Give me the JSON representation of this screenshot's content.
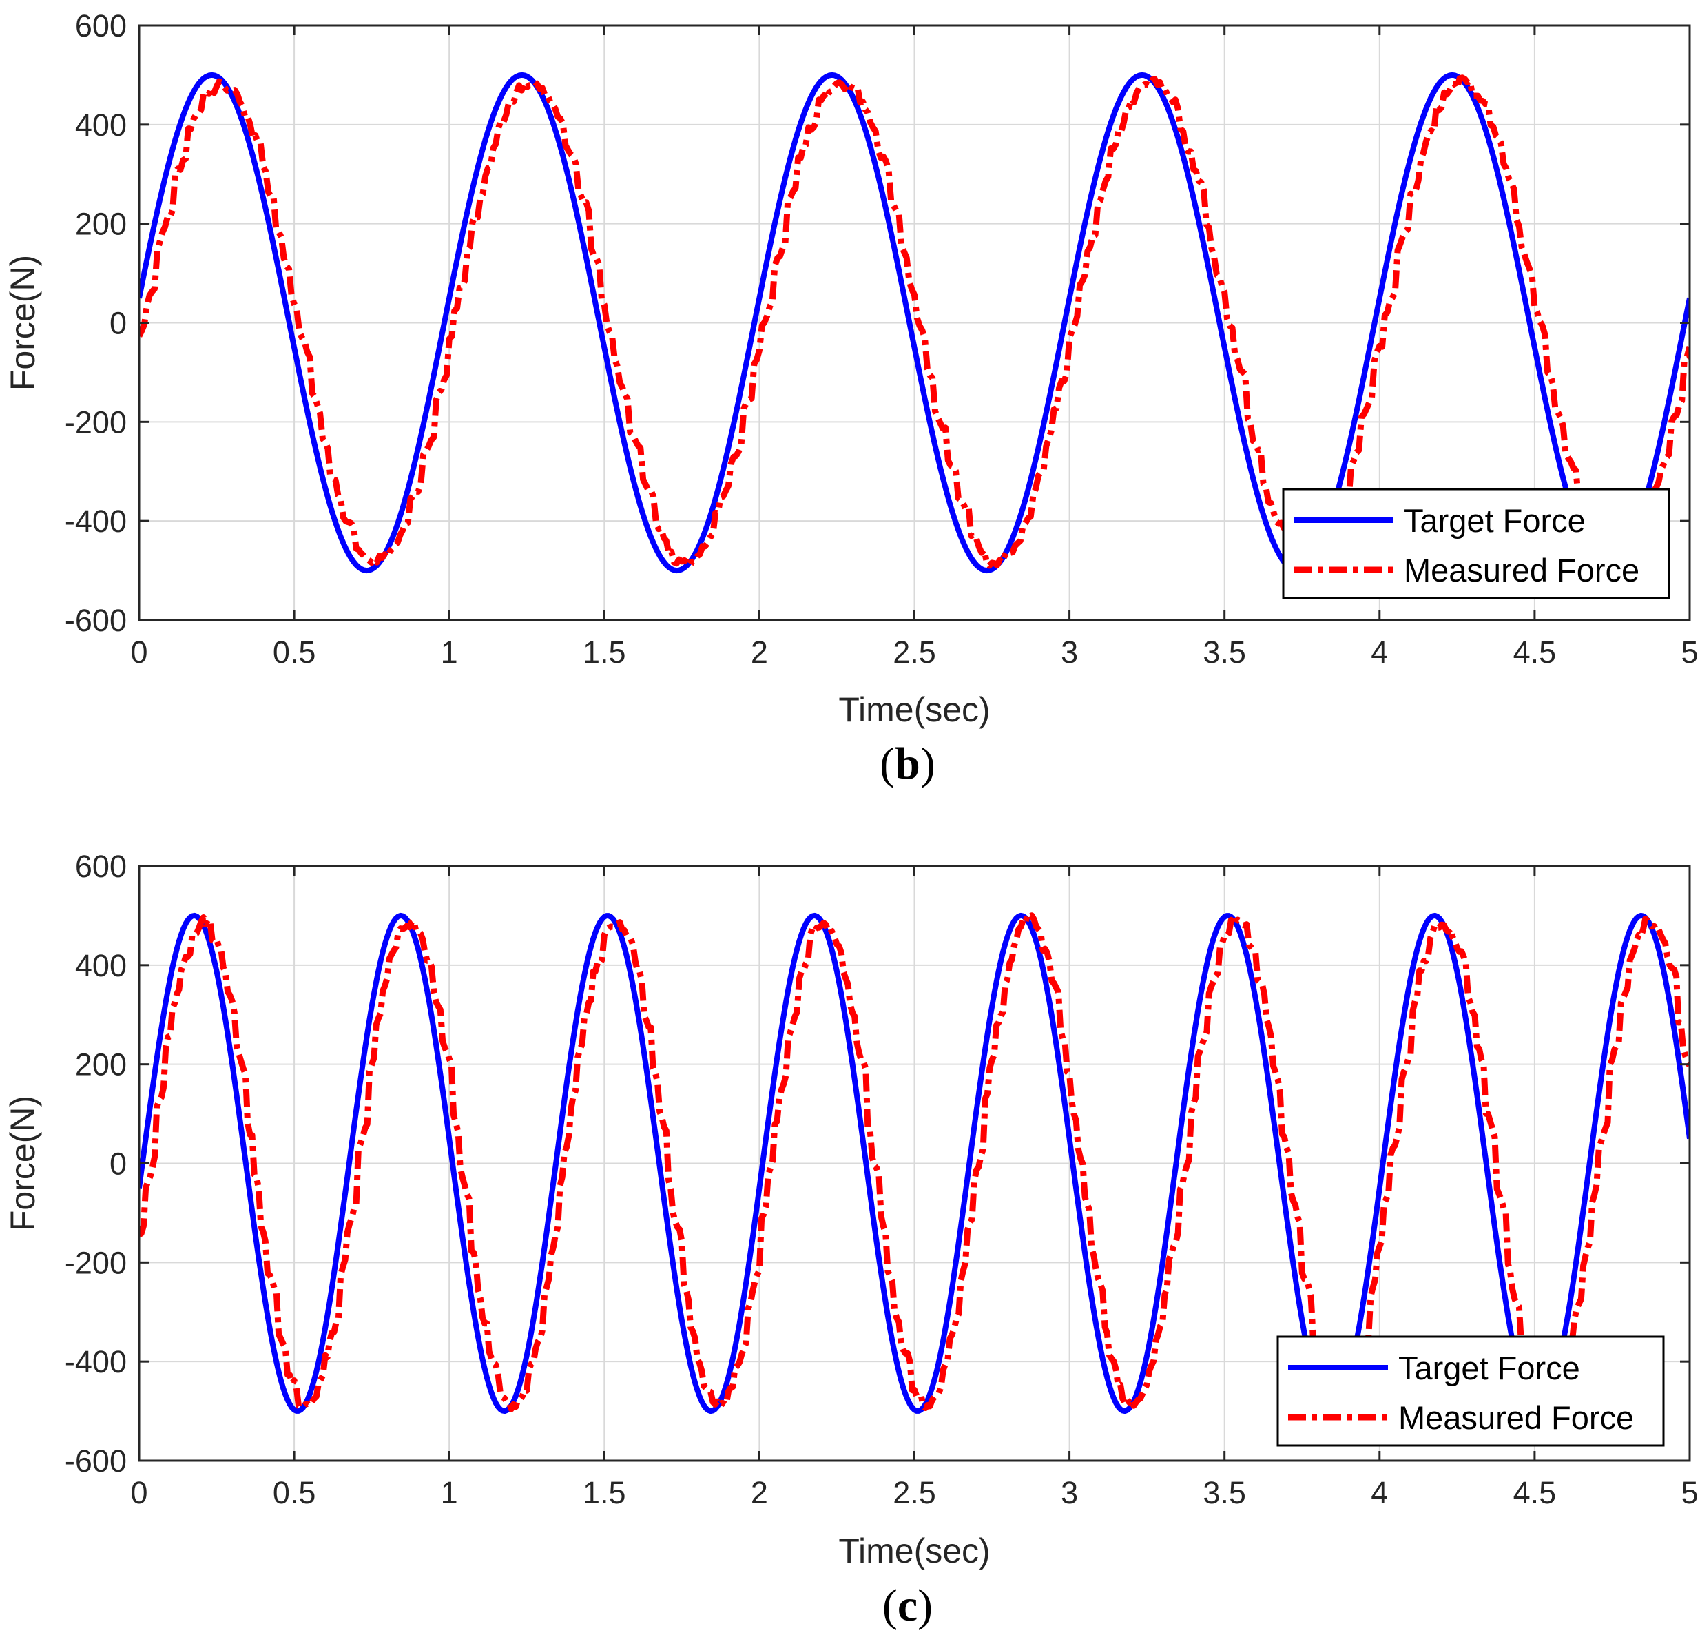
{
  "colors": {
    "target": "#0000ff",
    "measured": "#ff0000",
    "grid": "#d9d9d9",
    "axis": "#262626",
    "text": "#262626"
  },
  "chart_data": [
    {
      "type": "line",
      "caption": {
        "open": "(",
        "letter": "b",
        "close": ")"
      },
      "xlabel": "Time(sec)",
      "ylabel": "Force(N)",
      "xlim": [
        0,
        5
      ],
      "ylim": [
        -600,
        600
      ],
      "xticks": [
        0,
        0.5,
        1,
        1.5,
        2,
        2.5,
        3,
        3.5,
        4,
        4.5,
        5
      ],
      "xtick_labels": [
        "0",
        "0.5",
        "1",
        "1.5",
        "2",
        "2.5",
        "3",
        "3.5",
        "4",
        "4.5",
        "5"
      ],
      "yticks": [
        600,
        400,
        200,
        0,
        -200,
        -400,
        -600
      ],
      "ytick_labels": [
        "600",
        "400",
        "200",
        "0",
        "-200",
        "-400",
        "-600"
      ],
      "grid": true,
      "legend_position": "bottom-right",
      "series": [
        {
          "name": "Target Force",
          "style": "solid",
          "frequency_hz": 1.0,
          "amplitude": 500,
          "phase_rad": 0.1,
          "points": 600
        },
        {
          "name": "Measured Force",
          "style": "dash-dot",
          "frequency_hz": 1.0,
          "amplitude": 485,
          "phase_rad": -0.06,
          "noise": 14,
          "points": 600
        }
      ]
    },
    {
      "type": "line",
      "caption": {
        "open": "(",
        "letter": "c",
        "close": ")"
      },
      "xlabel": "Time(sec)",
      "ylabel": "Force(N)",
      "xlim": [
        0,
        5
      ],
      "ylim": [
        -600,
        600
      ],
      "xticks": [
        0,
        0.5,
        1,
        1.5,
        2,
        2.5,
        3,
        3.5,
        4,
        4.5,
        5
      ],
      "xtick_labels": [
        "0",
        "0.5",
        "1",
        "1.5",
        "2",
        "2.5",
        "3",
        "3.5",
        "4",
        "4.5",
        "5"
      ],
      "yticks": [
        600,
        400,
        200,
        0,
        -200,
        -400,
        -600
      ],
      "ytick_labels": [
        "600",
        "400",
        "200",
        "0",
        "-200",
        "-400",
        "-600"
      ],
      "grid": true,
      "legend_position": "bottom-right",
      "series": [
        {
          "name": "Target Force",
          "style": "solid",
          "frequency_hz": 1.5,
          "amplitude": 500,
          "phase_rad": -0.1,
          "points": 700
        },
        {
          "name": "Measured Force",
          "style": "dash-dot",
          "frequency_hz": 1.5,
          "amplitude": 488,
          "phase_rad": -0.32,
          "noise": 14,
          "points": 700
        }
      ]
    }
  ]
}
